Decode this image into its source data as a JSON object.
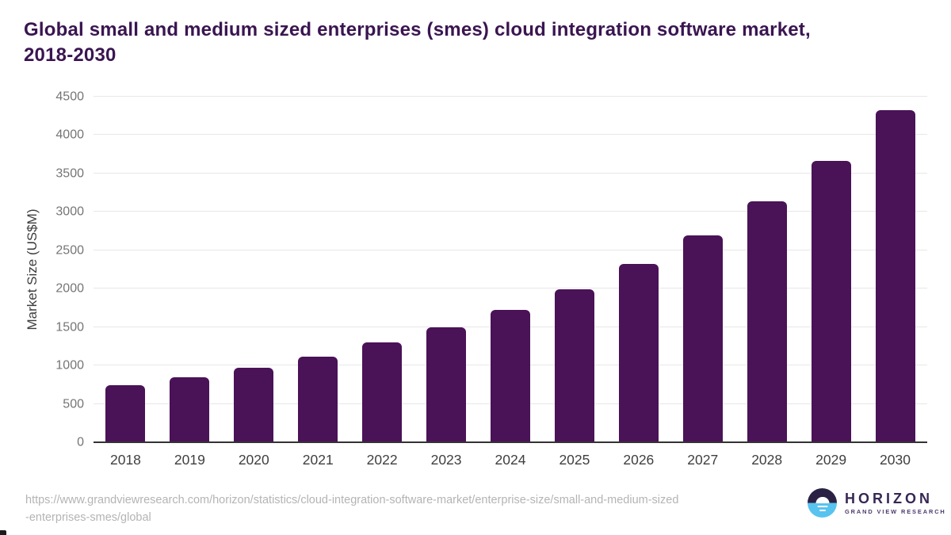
{
  "header": {
    "title_line1": "Global small and medium sized enterprises (smes) cloud integration software market,",
    "title_line2": "2018-2030"
  },
  "chart_data": {
    "type": "bar",
    "title": "Global small and medium sized enterprises (smes) cloud integration software market, 2018-2030",
    "categories": [
      "2018",
      "2019",
      "2020",
      "2021",
      "2022",
      "2023",
      "2024",
      "2025",
      "2026",
      "2027",
      "2028",
      "2029",
      "2030"
    ],
    "values": [
      740,
      845,
      970,
      1120,
      1300,
      1500,
      1720,
      1995,
      2320,
      2695,
      3135,
      3665,
      4320
    ],
    "xlabel": "",
    "ylabel": "Market Size (US$M)",
    "ylim": [
      0,
      4500
    ],
    "yticks": [
      0,
      500,
      1000,
      1500,
      2000,
      2500,
      3000,
      3500,
      4000,
      4500
    ],
    "grid": true,
    "legend": "none",
    "bar_color": "#4a1257"
  },
  "footer": {
    "source_line1": "https://www.grandviewresearch.com/horizon/statistics/cloud-integration-software-market/enterprise-size/small-and-medium-sized",
    "source_line2": "-enterprises-smes/global",
    "logo": {
      "icon": "horizon-sunset-icon",
      "name": "HORIZON",
      "subtitle": "GRAND VIEW RESEARCH"
    }
  },
  "colors": {
    "title": "#3a1551",
    "bar": "#4a1257",
    "grid": "#e7e7e7",
    "axis": "#333333",
    "tick_label": "#757575",
    "x_label": "#3f3f3f",
    "source": "#b4b4b4",
    "logo_dark": "#2b2144",
    "logo_blue": "#58c3ef",
    "logo_text": "#372754"
  }
}
